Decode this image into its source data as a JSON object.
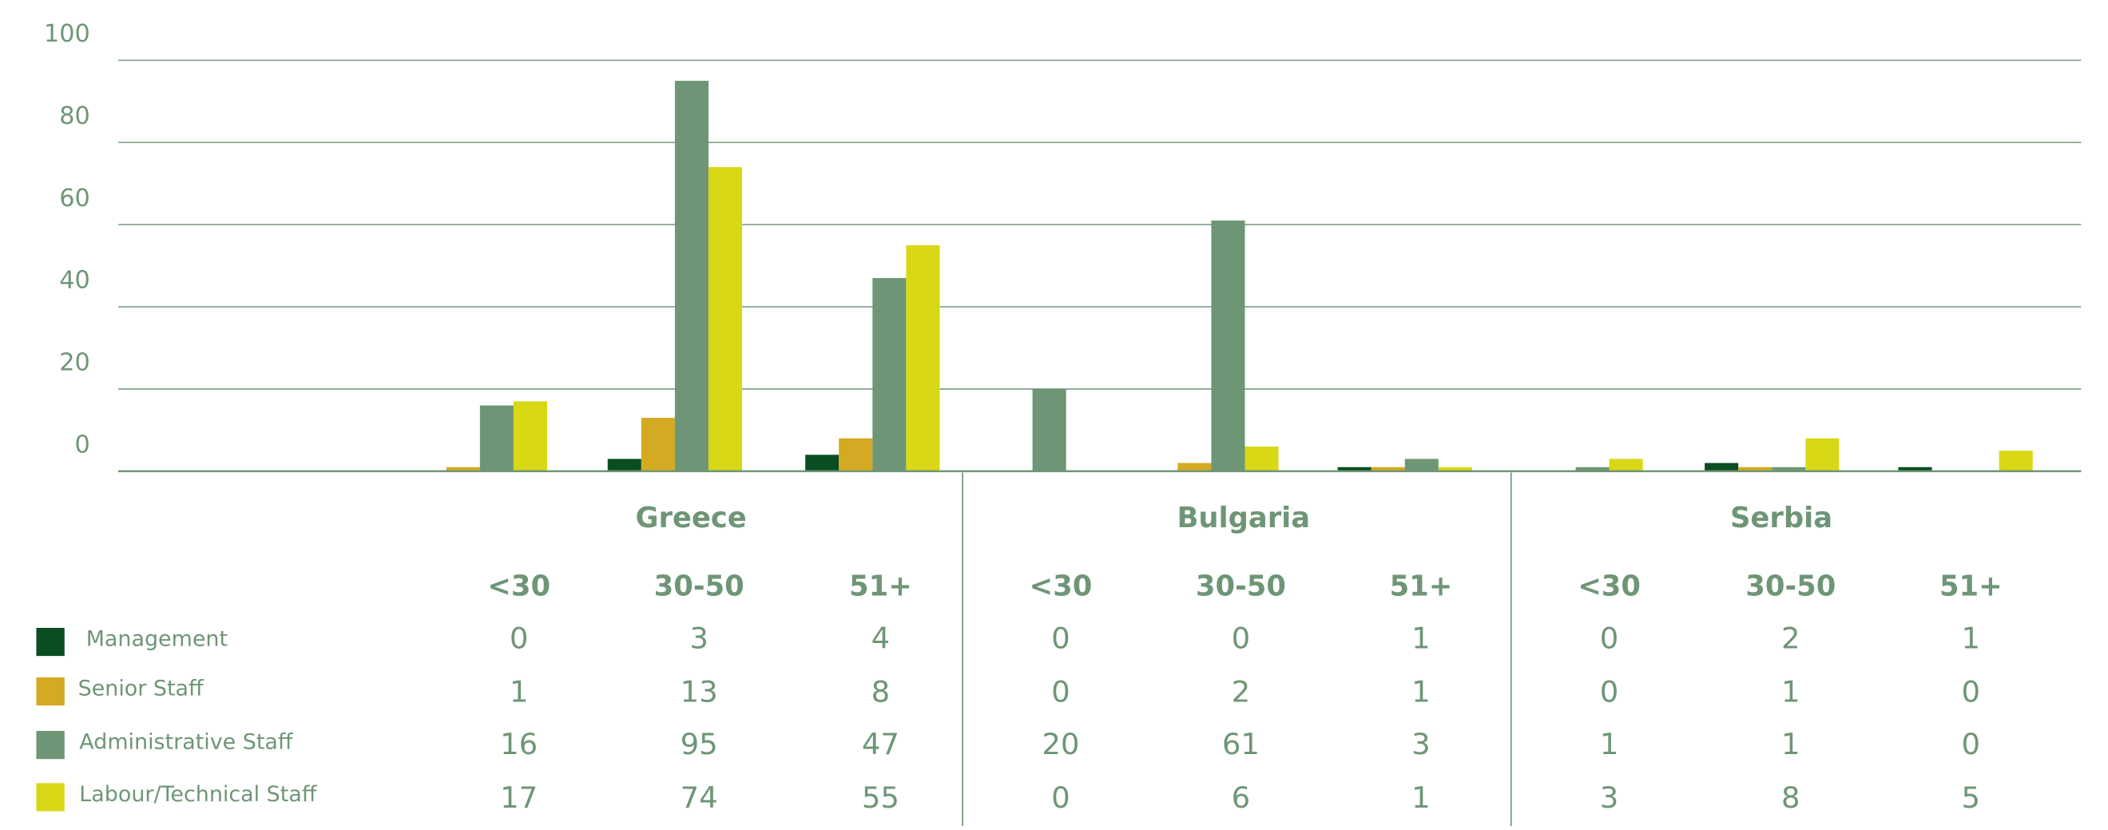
{
  "chart_data": {
    "type": "bar",
    "groups": [
      "Greece",
      "Bulgaria",
      "Serbia"
    ],
    "categories": [
      "<30",
      "30-50",
      "51+",
      "<30",
      "30-50",
      "51+",
      "<30",
      "30-50",
      "51+"
    ],
    "series": [
      {
        "name": "Management",
        "color": "#0b4d23",
        "values": [
          0,
          3,
          4,
          0,
          0,
          1,
          0,
          2,
          1
        ]
      },
      {
        "name": "Senior Staff",
        "color": "#d4aa22",
        "values": [
          1,
          13,
          8,
          0,
          2,
          1,
          0,
          1,
          0
        ]
      },
      {
        "name": "Administrative Staff",
        "color": "#6e9676",
        "values": [
          16,
          95,
          47,
          20,
          61,
          3,
          1,
          1,
          0
        ]
      },
      {
        "name": "Labour/Technical Staff",
        "color": "#d8d816",
        "values": [
          17,
          74,
          55,
          0,
          6,
          1,
          3,
          8,
          5
        ]
      }
    ],
    "ylim": [
      0,
      100
    ],
    "yticks": [
      0,
      20,
      40,
      60,
      80,
      100
    ],
    "grid": true
  }
}
